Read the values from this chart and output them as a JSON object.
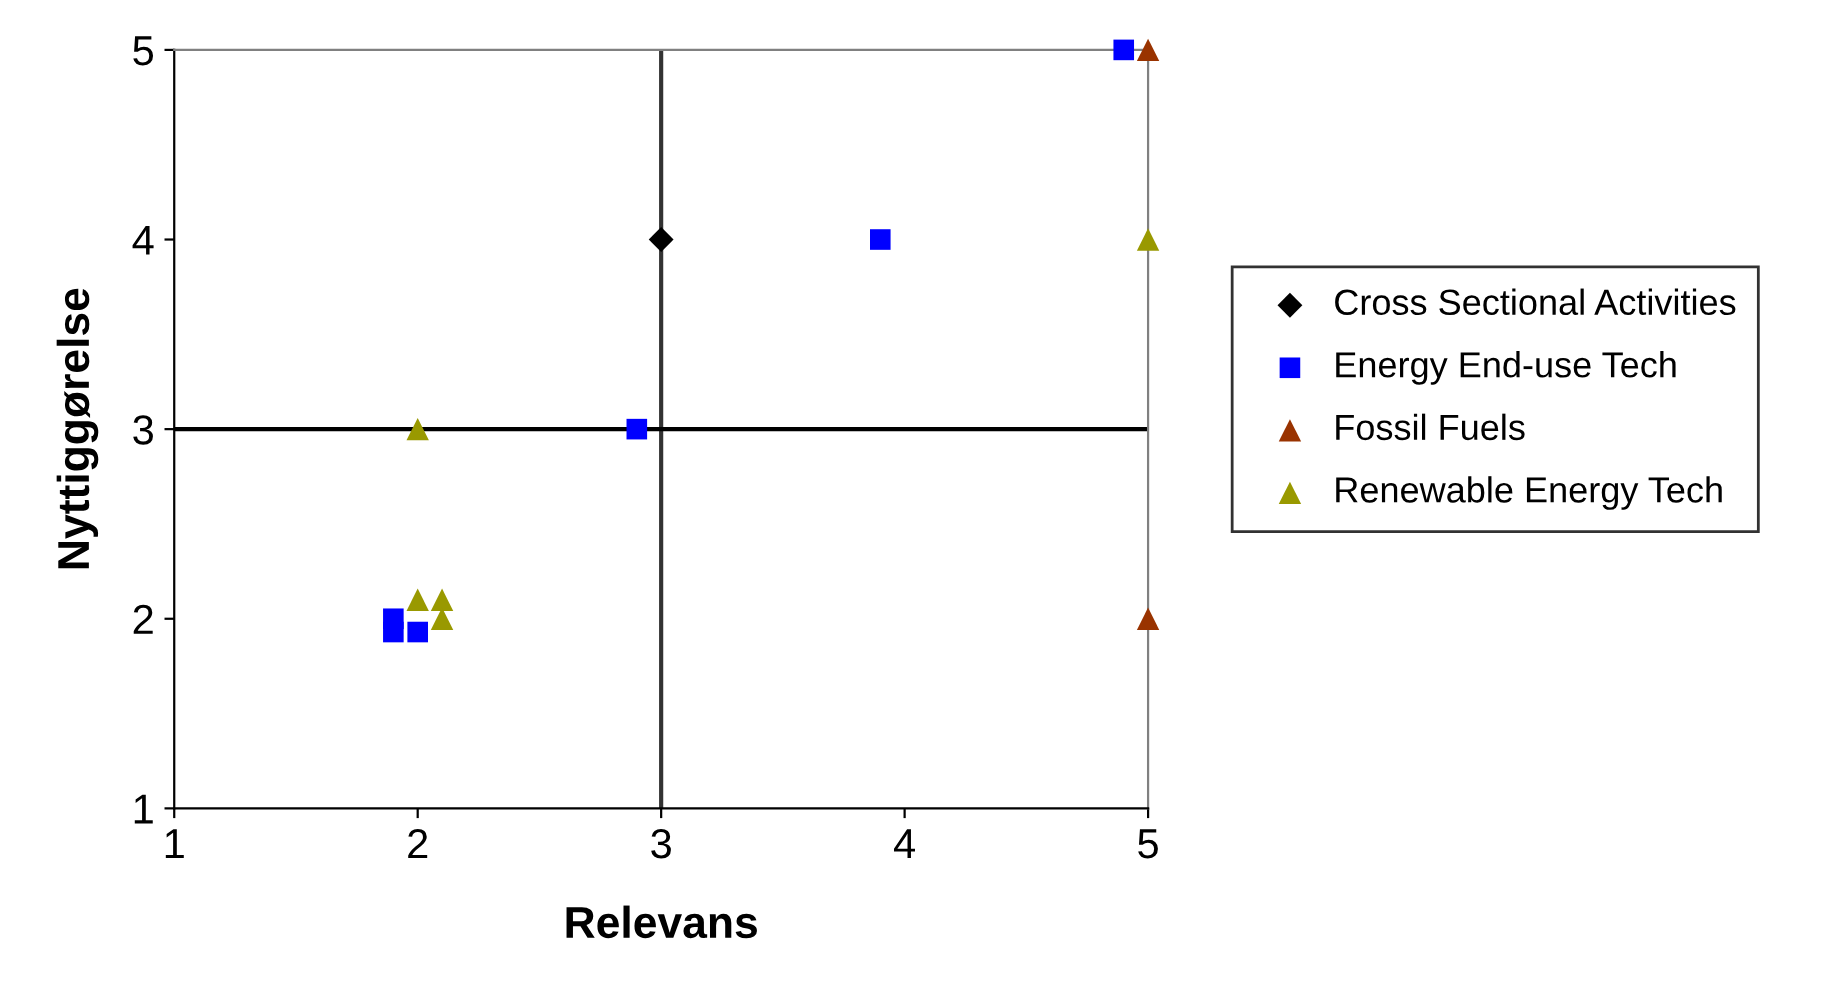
{
  "chart_data": {
    "type": "scatter",
    "xlabel": "Relevans",
    "ylabel": "Nyttiggørelse",
    "series": [
      {
        "name": "Cross Sectional Activities",
        "color": "#000000",
        "marker": "diamond",
        "x": [
          3
        ],
        "values": [
          4
        ]
      },
      {
        "name": "Energy End-use Tech",
        "color": "#0000ff",
        "marker": "square",
        "x": [
          4.9,
          3.9,
          2.9,
          1.9,
          1.9,
          2.0
        ],
        "values": [
          5,
          4,
          3,
          2.0,
          1.93,
          1.93
        ]
      },
      {
        "name": "Fossil Fuels",
        "color": "#993300",
        "marker": "triangle",
        "x": [
          5,
          5
        ],
        "values": [
          5,
          2
        ]
      },
      {
        "name": "Renewable Energy Tech",
        "color": "#999900",
        "marker": "triangle",
        "x": [
          2,
          5,
          2,
          2.1,
          2.1
        ],
        "values": [
          3,
          4,
          2.1,
          2.1,
          2.0
        ]
      }
    ],
    "xlim": [
      1,
      5
    ],
    "ylim": [
      1,
      5
    ],
    "xticks": [
      1,
      2,
      3,
      4,
      5
    ],
    "yticks": [
      1,
      2,
      3,
      4,
      5
    ],
    "ref_lines": [
      {
        "axis": "x",
        "value": 3,
        "color": "#333333"
      },
      {
        "axis": "y",
        "value": 3,
        "color": "#000000"
      }
    ],
    "grid": false,
    "legend": "right"
  }
}
